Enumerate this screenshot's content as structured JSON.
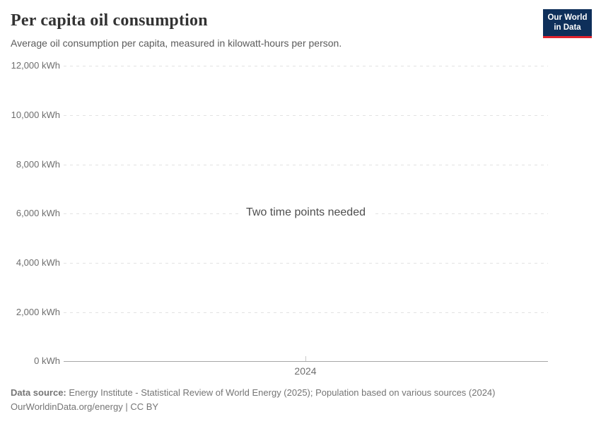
{
  "header": {
    "title": "Per capita oil consumption",
    "subtitle": "Average oil consumption per capita, measured in kilowatt-hours per person.",
    "logo": {
      "line1": "Our World",
      "line2": "in Data",
      "bg_color": "#0e2f5a",
      "accent_color": "#e0232e"
    }
  },
  "chart": {
    "message": "Two time points needed",
    "y_ticks": [
      "12,000 kWh",
      "10,000 kWh",
      "8,000 kWh",
      "6,000 kWh",
      "4,000 kWh",
      "2,000 kWh",
      "0 kWh"
    ],
    "x_ticks": [
      "2024"
    ]
  },
  "footer": {
    "source_label": "Data source:",
    "source_text": " Energy Institute - Statistical Review of World Energy (2025); Population based on various sources (2024)",
    "license_line": "OurWorldinData.org/energy | CC BY"
  },
  "chart_data": {
    "type": "line",
    "title": "Per capita oil consumption",
    "subtitle": "Average oil consumption per capita, measured in kilowatt-hours per person.",
    "series": [],
    "annotation": "Two time points needed",
    "x": [
      2024
    ],
    "xticks": [
      2024
    ],
    "ylim": [
      0,
      12000
    ],
    "yticks": [
      0,
      2000,
      4000,
      6000,
      8000,
      10000,
      12000
    ],
    "ytick_unit": "kWh",
    "grid": "horizontal-dashed",
    "legend": "none",
    "gridline_color": "#e2e2e2",
    "axis_color": "#a6a6a6",
    "text_color": "#6e6e6e"
  }
}
